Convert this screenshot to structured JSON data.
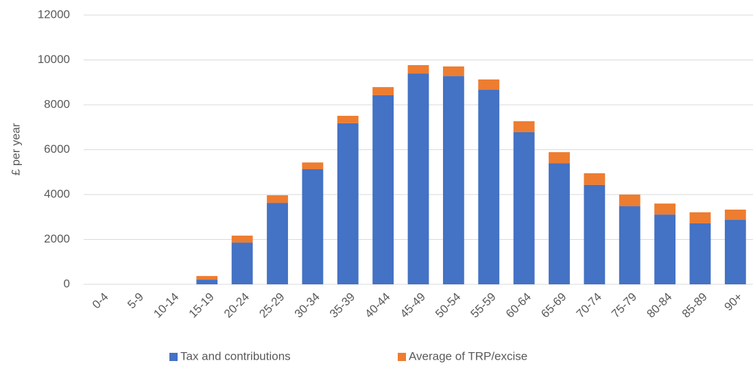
{
  "chart_data": {
    "type": "bar",
    "stacked": true,
    "y_label": "£ per year",
    "categories": [
      "0-4",
      "5-9",
      "10-14",
      "15-19",
      "20-24",
      "25-29",
      "30-34",
      "35-39",
      "40-44",
      "45-49",
      "50-54",
      "55-59",
      "60-64",
      "65-69",
      "70-74",
      "75-79",
      "80-84",
      "85-89",
      "90+"
    ],
    "series": [
      {
        "name": "Tax and contributions",
        "color": "#4472c4",
        "values": [
          0,
          0,
          0,
          210,
          1860,
          3630,
          5130,
          7180,
          8430,
          9400,
          9280,
          8670,
          6780,
          5400,
          4430,
          3480,
          3110,
          2720,
          2870
        ]
      },
      {
        "name": "Average of TRP/excise",
        "color": "#ed7d31",
        "values": [
          0,
          0,
          0,
          160,
          310,
          340,
          300,
          330,
          360,
          370,
          430,
          460,
          490,
          490,
          520,
          520,
          490,
          490,
          460
        ]
      }
    ],
    "ylim": [
      0,
      12000
    ],
    "yticks": [
      0,
      2000,
      4000,
      6000,
      8000,
      10000,
      12000
    ],
    "grid": true,
    "legend": "bottom"
  }
}
